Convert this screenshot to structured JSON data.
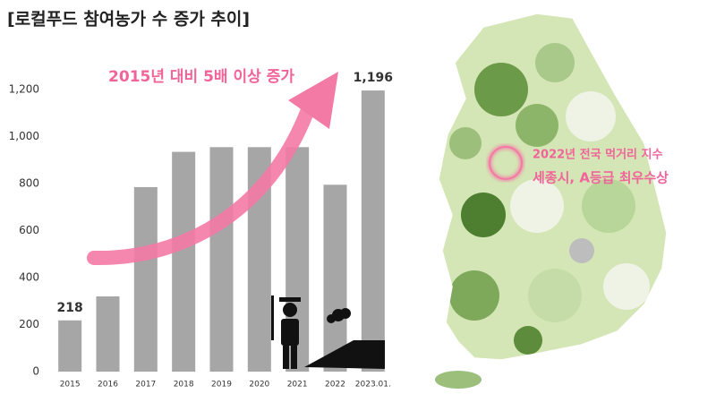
{
  "chart_data": {
    "type": "bar",
    "title": "[로컬푸드 참여농가 수 증가 추이]",
    "annotation": "2015년 대비 5배 이상 증가",
    "categories": [
      "2015",
      "2016",
      "2017",
      "2018",
      "2019",
      "2020",
      "2021",
      "2022",
      "2023.01."
    ],
    "values": [
      218,
      320,
      785,
      935,
      955,
      955,
      955,
      795,
      1196
    ],
    "value_labels": [
      "218",
      null,
      null,
      null,
      null,
      null,
      null,
      null,
      "1,196"
    ],
    "color": "#a6a6a6",
    "ylim": [
      0,
      1200
    ],
    "yticks": [
      0,
      200,
      400,
      600,
      800,
      {
        "value": 1000,
        "label": "1,000"
      },
      {
        "value": 1200,
        "label": "1,200"
      }
    ],
    "grid": false
  },
  "map": {
    "annotations": [
      "2022년 전국 먹거리 지수",
      "세종시, A등급 최우수상"
    ]
  }
}
